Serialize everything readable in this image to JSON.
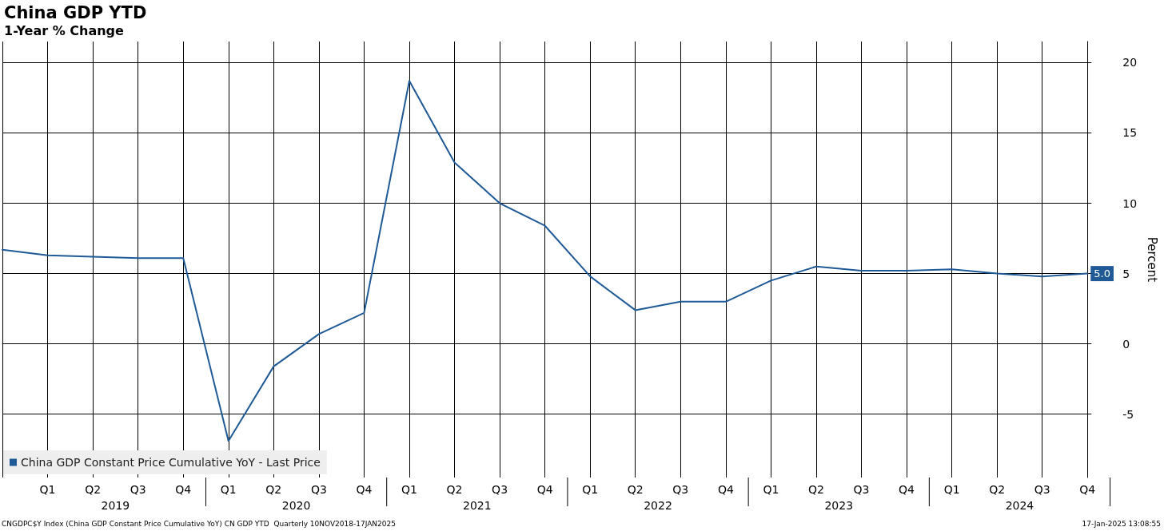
{
  "chart_data": {
    "type": "line",
    "title": "China GDP YTD",
    "subtitle": "1-Year % Change",
    "ylabel": "Percent",
    "categories": [
      null,
      "Q1",
      "Q2",
      "Q3",
      "Q4",
      "Q1",
      "Q2",
      "Q3",
      "Q4",
      "Q1",
      "Q2",
      "Q3",
      "Q4",
      "Q1",
      "Q2",
      "Q3",
      "Q4",
      "Q1",
      "Q2",
      "Q3",
      "Q4",
      "Q1",
      "Q2",
      "Q3",
      "Q4"
    ],
    "series": [
      {
        "name": "China GDP Constant Price Cumulative YoY - Last Price",
        "color": "#1f5a96",
        "values": [
          6.7,
          6.3,
          6.2,
          6.1,
          6.1,
          -6.9,
          -1.6,
          0.7,
          2.2,
          18.7,
          12.9,
          10.0,
          8.4,
          4.8,
          2.4,
          3.0,
          3.0,
          4.5,
          5.5,
          5.2,
          5.2,
          5.3,
          5.0,
          4.8,
          5.0
        ],
        "value_labels": [
          null,
          null,
          null,
          null,
          null,
          null,
          null,
          null,
          null,
          null,
          null,
          null,
          null,
          null,
          null,
          null,
          null,
          null,
          null,
          null,
          null,
          null,
          null,
          null,
          "5.0"
        ]
      }
    ],
    "ylim": [
      -9.5,
      21.5
    ],
    "yticks": [
      -5,
      0,
      5,
      10,
      15,
      20
    ],
    "grid": true,
    "legend": "bottom left",
    "marker": "none",
    "line_style": "solid",
    "annotations": [
      "2019",
      "2020",
      "2021",
      "2022",
      "2023",
      "2024",
      "CNGDPC$Y Index (China GDP Constant Price Cumulative YoY) CN GDP YTD  Quarterly 10NOV2018-17JAN2025",
      "17-Jan-2025 13:08:55"
    ]
  }
}
